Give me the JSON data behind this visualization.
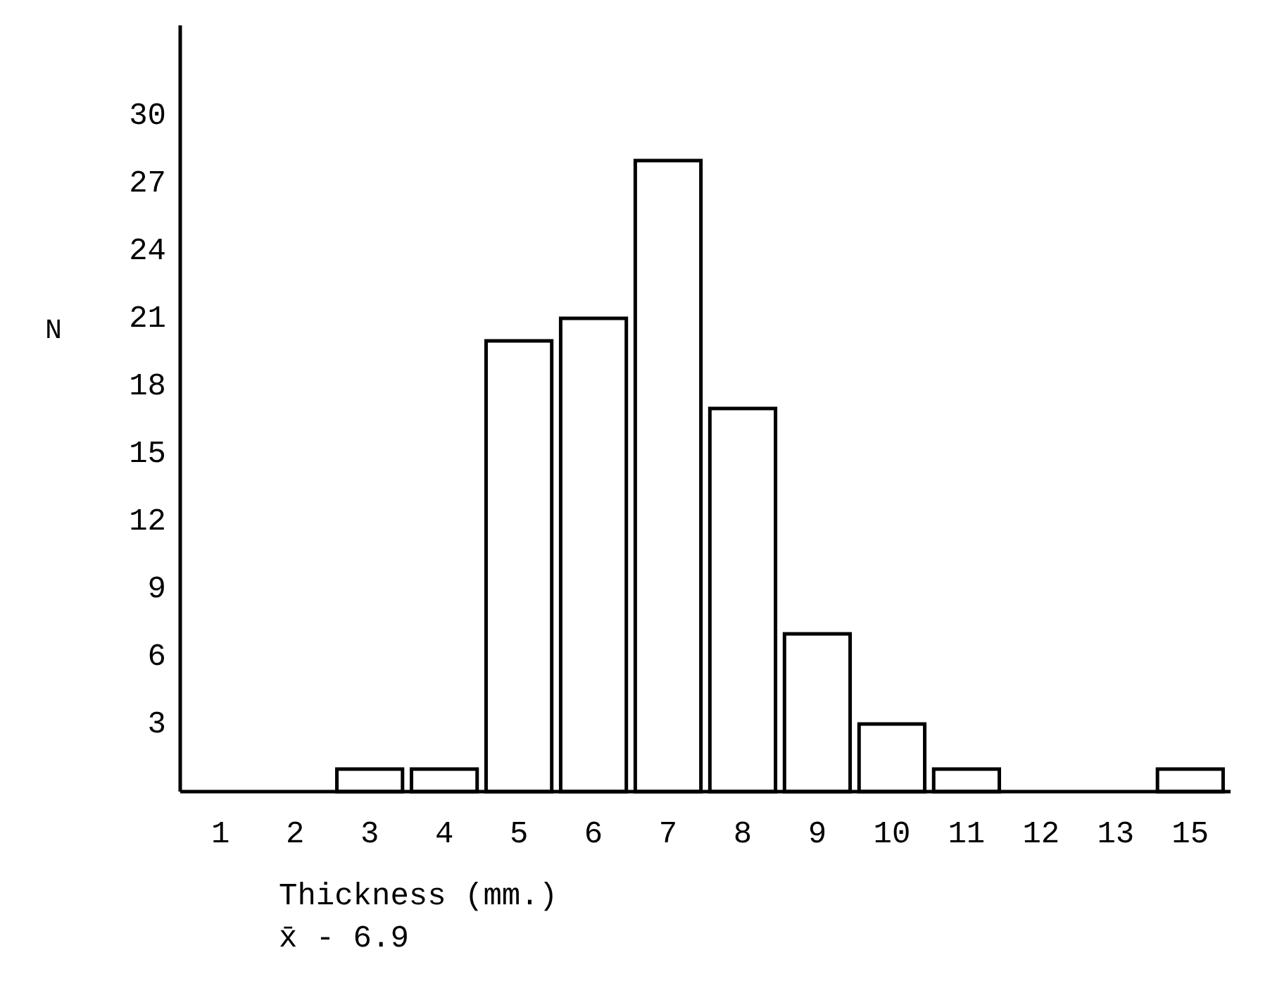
{
  "chart_data": {
    "type": "bar",
    "xlabel": "Thickness (mm.)",
    "ylabel": "N",
    "categories": [
      "1",
      "2",
      "3",
      "4",
      "5",
      "6",
      "7",
      "8",
      "9",
      "10",
      "11",
      "12",
      "13",
      "15"
    ],
    "values": [
      0,
      0,
      1,
      1,
      20,
      21,
      28,
      17,
      7,
      3,
      1,
      0,
      0,
      1
    ],
    "color": "#ffffff",
    "ylim": [
      0,
      34
    ],
    "yticks": [
      3,
      6,
      9,
      12,
      15,
      18,
      21,
      24,
      27,
      30
    ],
    "annotations": [
      "x̄ - 6.9"
    ]
  }
}
